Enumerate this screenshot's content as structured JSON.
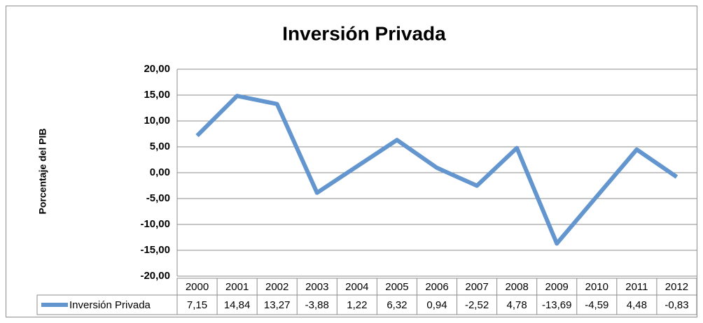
{
  "chart_data": {
    "type": "line",
    "title": "Inversión Privada",
    "y_label": "Porcentaje del PIB",
    "categories": [
      "2000",
      "2001",
      "2002",
      "2003",
      "2004",
      "2005",
      "2006",
      "2007",
      "2008",
      "2009",
      "2010",
      "2011",
      "2012"
    ],
    "series": [
      {
        "name": "Inversión Privada",
        "color": "#6395cf",
        "values": [
          7.15,
          14.84,
          13.27,
          -3.88,
          1.22,
          6.32,
          0.94,
          -2.52,
          4.78,
          -13.69,
          -4.59,
          4.48,
          -0.83
        ],
        "value_labels": [
          "7,15",
          "14,84",
          "13,27",
          "-3,88",
          "1,22",
          "6,32",
          "0,94",
          "-2,52",
          "4,78",
          "-13,69",
          "-4,59",
          "4,48",
          "-0,83"
        ]
      }
    ],
    "ylim": [
      -20,
      20
    ],
    "yticks": [
      {
        "value": -20,
        "label": "-20,00"
      },
      {
        "value": -15,
        "label": "-15,00"
      },
      {
        "value": -10,
        "label": "-10,00"
      },
      {
        "value": -5,
        "label": "-5,00"
      },
      {
        "value": 0,
        "label": "0,00"
      },
      {
        "value": 5,
        "label": "5,00"
      },
      {
        "value": 10,
        "label": "10,00"
      },
      {
        "value": 15,
        "label": "15,00"
      },
      {
        "value": 20,
        "label": "20,00"
      }
    ],
    "grid": true,
    "data_table": true
  }
}
